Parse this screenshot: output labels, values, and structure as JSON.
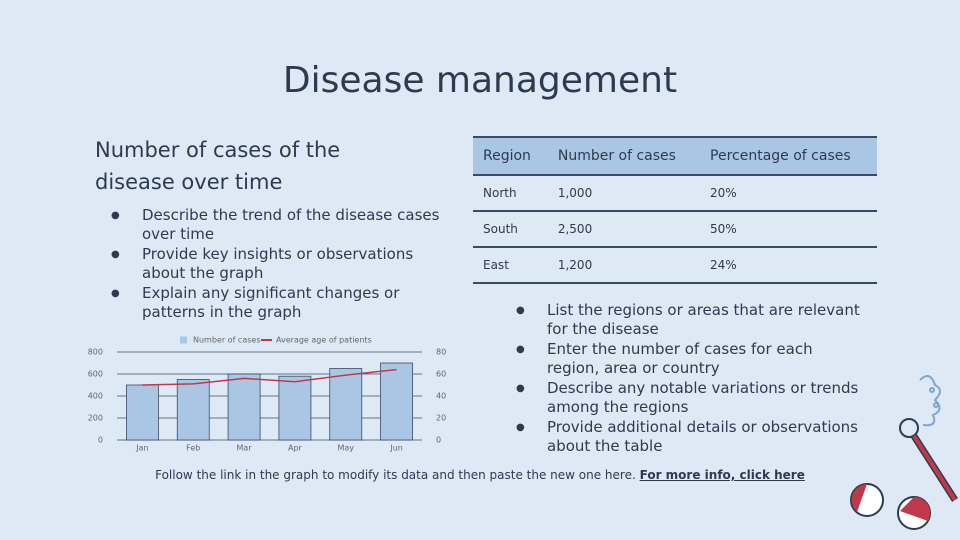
{
  "title": "Disease management",
  "left": {
    "heading": "Number of cases of the disease over time",
    "bullets": [
      "Describe the trend of the disease cases over time",
      "Provide key insights or observations about the graph",
      "Explain any significant changes or patterns in the graph"
    ]
  },
  "chart": {
    "type": "bar-line",
    "categories": [
      "Jan",
      "Feb",
      "Mar",
      "Apr",
      "May",
      "Jun"
    ],
    "series": [
      {
        "name": "Number of cases",
        "type": "bar",
        "color": "#a9c7e5",
        "values": [
          500,
          550,
          600,
          580,
          650,
          700
        ]
      },
      {
        "name": "Average age of patients",
        "type": "line",
        "color": "#c0394b",
        "axis": "y2",
        "values": [
          50,
          51,
          56,
          53,
          59,
          64
        ]
      }
    ],
    "ylim": [
      0,
      800
    ],
    "yticks": [
      0,
      200,
      400,
      600,
      800
    ],
    "y2lim": [
      0,
      80
    ],
    "y2ticks": [
      0,
      20,
      40,
      60,
      80
    ],
    "grid": true,
    "legend": "top"
  },
  "table": {
    "header": [
      "Region",
      "Number of cases",
      "Percentage of cases"
    ],
    "rows": [
      [
        "North",
        "1,000",
        "20%"
      ],
      [
        "South",
        "2,500",
        "50%"
      ],
      [
        "East",
        "1,200",
        "24%"
      ]
    ]
  },
  "right": {
    "bullets": [
      "List the regions or areas that are relevant for the disease",
      "Enter the number of cases for each region, area or country",
      "Describe any notable variations or trends among the regions",
      "Provide additional details or observations about the table"
    ]
  },
  "footer": {
    "text": "Follow the link in the graph to modify its data and then paste the new one here.",
    "link": "For more info, click here"
  }
}
